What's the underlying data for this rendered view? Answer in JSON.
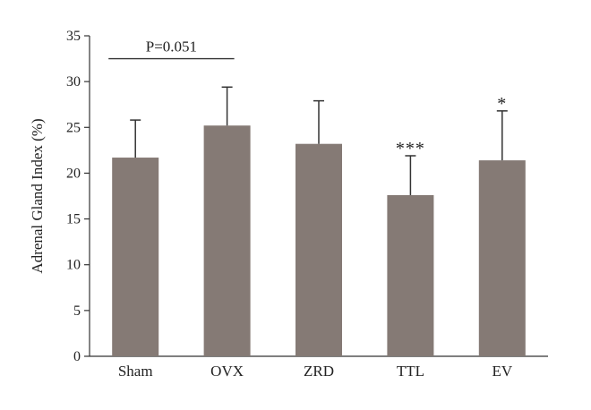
{
  "chart_data": {
    "type": "bar",
    "title": "",
    "xlabel": "",
    "ylabel": "Adrenal Gland Index (%)",
    "categories": [
      "Sham",
      "OVX",
      "ZRD",
      "TTL",
      "EV"
    ],
    "values": [
      21.7,
      25.2,
      23.2,
      17.6,
      21.4
    ],
    "errors": [
      4.1,
      4.2,
      4.7,
      4.3,
      5.4
    ],
    "significance": [
      "",
      "",
      "",
      "***",
      "*"
    ],
    "ylim": [
      0,
      35
    ],
    "yticks": [
      0,
      5,
      10,
      15,
      20,
      25,
      30,
      35
    ],
    "bar_color": "#857a75",
    "error_bar_color": "#333333",
    "grid": false,
    "annotations": [
      {
        "text": "P=0.051",
        "from_category": "Sham",
        "to_category": "OVX",
        "y": 32.5
      }
    ]
  }
}
